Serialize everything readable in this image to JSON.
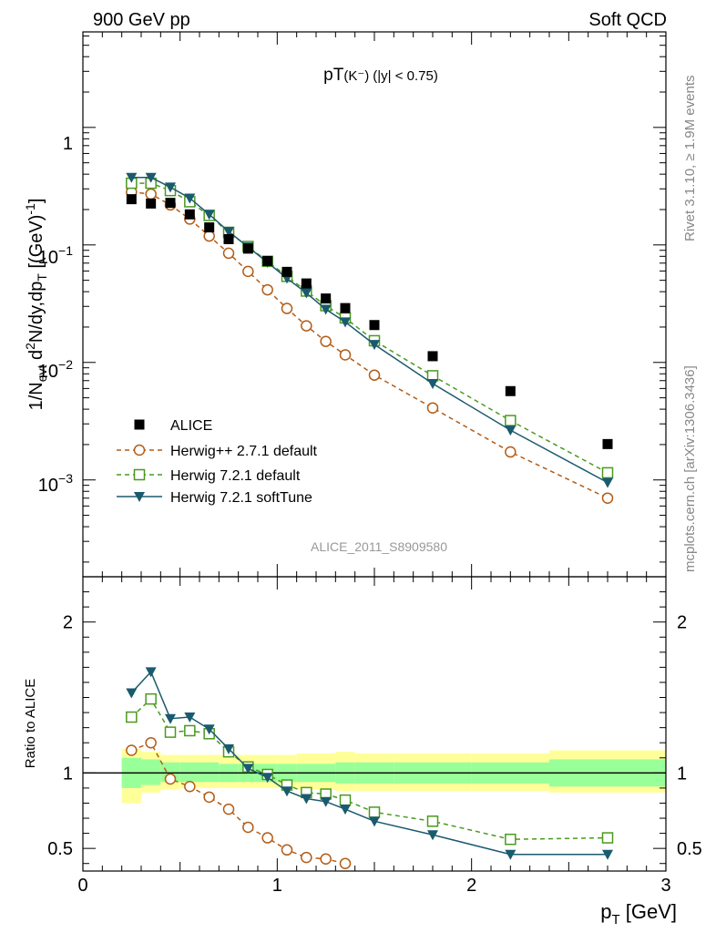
{
  "header": {
    "left": "900 GeV pp",
    "right": "Soft QCD"
  },
  "side_labels": {
    "rivet": "Rivet 3.1.10, ≥ 1.9M events",
    "mcplots": "mcplots.cern.ch [arXiv:1306.3436]"
  },
  "chart_data": [
    {
      "type": "line",
      "panel": "main",
      "title": "pT(K⁻) (|y| < 0.75)",
      "title_main": "pT",
      "title_particle": "(K⁻)",
      "title_cut": "(|y| < 0.75)",
      "ylabel": "1/N_evt d²N/dy,dp_T [(GeV)⁻¹]",
      "ylabel_parts": {
        "a": "1/N",
        "b": "evt",
        "c": " d",
        "d": "2",
        "e": "N/dy,dp",
        "f": "T",
        "g": " [(GeV)",
        "h": "-1",
        "i": "]"
      },
      "yscale": "log",
      "xlim": [
        0,
        3
      ],
      "ylim": [
        0.00015,
        6.5
      ],
      "ytick_values": [
        0.001,
        0.01,
        0.1,
        1
      ],
      "ytick_labels": {
        "t0": {
          "base": "10",
          "exp": "−3"
        },
        "t1": {
          "base": "10",
          "exp": "−2"
        },
        "t2": {
          "base": "10",
          "exp": "−1"
        },
        "t3": {
          "base": "1",
          "exp": ""
        }
      },
      "analysis_id": "ALICE_2011_S8909580",
      "legend_position": "bottom-left",
      "x": [
        0.25,
        0.35,
        0.45,
        0.55,
        0.65,
        0.75,
        0.85,
        0.95,
        1.05,
        1.15,
        1.25,
        1.35,
        1.5,
        1.8,
        2.2,
        2.7
      ],
      "series": [
        {
          "name": "ALICE",
          "color": "#000000",
          "marker": "square-filled",
          "values": [
            0.245,
            0.225,
            0.228,
            0.182,
            0.141,
            0.112,
            0.093,
            0.073,
            0.059,
            0.047,
            0.035,
            0.029,
            0.0208,
            0.0113,
            0.0057,
            0.00202
          ]
        },
        {
          "name": "Herwig++ 2.7.1 default",
          "color": "#b35c16",
          "marker": "circle-open",
          "dashed": true,
          "values": [
            0.282,
            0.271,
            0.219,
            0.166,
            0.119,
            0.085,
            0.0595,
            0.0415,
            0.0288,
            0.0205,
            0.0151,
            0.0116,
            0.0078,
            0.0041,
            0.00173,
            0.0007
          ]
        },
        {
          "name": "Herwig 7.2.1 default",
          "color": "#4a9a1e",
          "marker": "square-open",
          "dashed": true,
          "values": [
            0.335,
            0.335,
            0.29,
            0.233,
            0.178,
            0.128,
            0.097,
            0.0725,
            0.054,
            0.0405,
            0.0304,
            0.0239,
            0.0153,
            0.0077,
            0.0032,
            0.00115
          ]
        },
        {
          "name": "Herwig 7.2.1 softTune",
          "color": "#1a5a6e",
          "marker": "triangle-down-filled",
          "dashed": false,
          "values": [
            0.375,
            0.375,
            0.31,
            0.25,
            0.182,
            0.13,
            0.096,
            0.071,
            0.052,
            0.039,
            0.0283,
            0.0221,
            0.0142,
            0.0066,
            0.00265,
            0.00095
          ]
        }
      ]
    },
    {
      "type": "line",
      "panel": "ratio",
      "ylabel": "Ratio to ALICE",
      "xlabel": "p_T [GeV]",
      "xlabel_parts": {
        "a": "p",
        "b": "T",
        "c": " [GeV]"
      },
      "xlim": [
        0,
        3
      ],
      "ylim": [
        0.35,
        2.3
      ],
      "xticks": [
        0,
        1,
        2,
        3
      ],
      "xtick_labels": [
        "0",
        "1",
        "2",
        "3"
      ],
      "yticks": [
        0.5,
        1,
        2
      ],
      "ytick_labels": [
        "0.5",
        "1",
        "2"
      ],
      "reference_line": 1,
      "bands": {
        "bins": [
          [
            0.2,
            0.3
          ],
          [
            0.3,
            0.4
          ],
          [
            0.4,
            0.5
          ],
          [
            0.5,
            0.6
          ],
          [
            0.6,
            0.7
          ],
          [
            0.7,
            0.8
          ],
          [
            0.8,
            0.9
          ],
          [
            0.9,
            1.0
          ],
          [
            1.0,
            1.1
          ],
          [
            1.1,
            1.2
          ],
          [
            1.2,
            1.3
          ],
          [
            1.3,
            1.4
          ],
          [
            1.4,
            1.6
          ],
          [
            1.6,
            2.0
          ],
          [
            2.0,
            2.4
          ],
          [
            2.4,
            3.0
          ]
        ],
        "inner": [
          [
            0.9,
            1.1
          ],
          [
            0.92,
            1.09
          ],
          [
            0.94,
            1.07
          ],
          [
            0.94,
            1.07
          ],
          [
            0.94,
            1.07
          ],
          [
            0.94,
            1.06
          ],
          [
            0.94,
            1.06
          ],
          [
            0.94,
            1.06
          ],
          [
            0.94,
            1.06
          ],
          [
            0.94,
            1.06
          ],
          [
            0.94,
            1.06
          ],
          [
            0.93,
            1.07
          ],
          [
            0.93,
            1.07
          ],
          [
            0.93,
            1.07
          ],
          [
            0.93,
            1.07
          ],
          [
            0.91,
            1.09
          ]
        ],
        "outer": [
          [
            0.8,
            1.16
          ],
          [
            0.87,
            1.14
          ],
          [
            0.89,
            1.12
          ],
          [
            0.9,
            1.12
          ],
          [
            0.9,
            1.12
          ],
          [
            0.9,
            1.12
          ],
          [
            0.9,
            1.12
          ],
          [
            0.9,
            1.12
          ],
          [
            0.9,
            1.12
          ],
          [
            0.89,
            1.13
          ],
          [
            0.89,
            1.13
          ],
          [
            0.88,
            1.14
          ],
          [
            0.88,
            1.13
          ],
          [
            0.88,
            1.13
          ],
          [
            0.88,
            1.13
          ],
          [
            0.87,
            1.15
          ]
        ],
        "inner_color": "#99ff99",
        "outer_color": "#ffff99"
      },
      "series": [
        {
          "name": "Herwig++ 2.7.1 default",
          "color": "#b35c16",
          "marker": "circle-open",
          "dashed": true,
          "x": [
            0.25,
            0.35,
            0.45,
            0.55,
            0.65,
            0.75,
            0.85,
            0.95,
            1.05,
            1.15,
            1.25,
            1.35
          ],
          "values": [
            1.15,
            1.2,
            0.96,
            0.91,
            0.84,
            0.76,
            0.64,
            0.57,
            0.49,
            0.44,
            0.43,
            0.4
          ]
        },
        {
          "name": "Herwig 7.2.1 default",
          "color": "#4a9a1e",
          "marker": "square-open",
          "dashed": true,
          "x": [
            0.25,
            0.35,
            0.45,
            0.55,
            0.65,
            0.75,
            0.85,
            0.95,
            1.05,
            1.15,
            1.25,
            1.35,
            1.5,
            1.8,
            2.2,
            2.7
          ],
          "values": [
            1.37,
            1.49,
            1.27,
            1.28,
            1.26,
            1.14,
            1.04,
            0.99,
            0.92,
            0.87,
            0.86,
            0.82,
            0.74,
            0.68,
            0.56,
            0.57
          ]
        },
        {
          "name": "Herwig 7.2.1 softTune",
          "color": "#1a5a6e",
          "marker": "triangle-down-filled",
          "dashed": false,
          "x": [
            0.25,
            0.35,
            0.45,
            0.55,
            0.65,
            0.75,
            0.85,
            0.95,
            1.05,
            1.15,
            1.25,
            1.35,
            1.5,
            1.8,
            2.2,
            2.7
          ],
          "values": [
            1.53,
            1.67,
            1.36,
            1.37,
            1.29,
            1.16,
            1.03,
            0.97,
            0.88,
            0.83,
            0.81,
            0.76,
            0.68,
            0.59,
            0.46,
            0.46
          ]
        }
      ]
    }
  ]
}
